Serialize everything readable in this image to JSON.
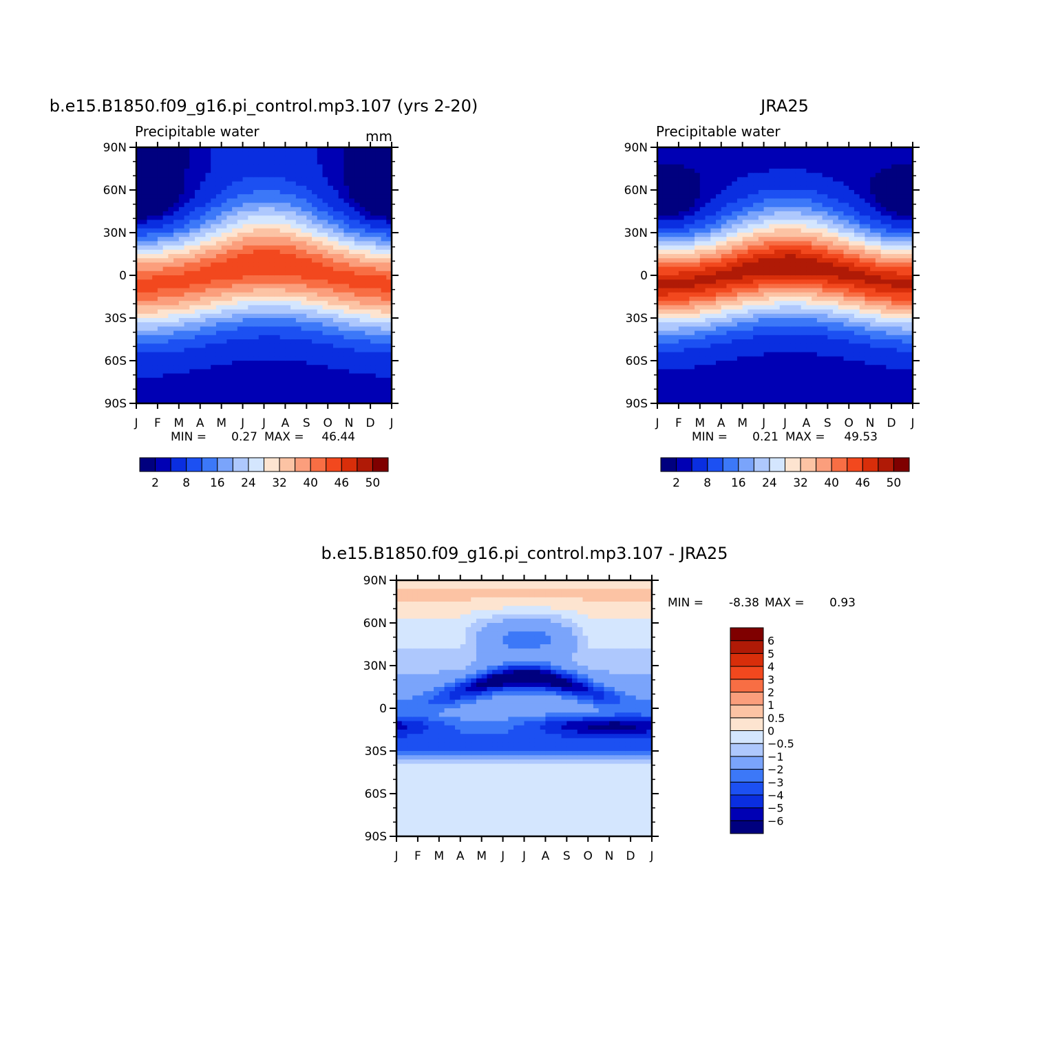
{
  "chart_data": [
    {
      "type": "heatmap",
      "title": "b.e15.B1850.f09_g16.pi_control.mp3.107 (yrs 2-20)",
      "left_subtitle": "Precipitable water",
      "units_label": "mm",
      "xlabel": "",
      "ylabel": "",
      "x_ticks": [
        "J",
        "F",
        "M",
        "A",
        "M",
        "J",
        "J",
        "A",
        "S",
        "O",
        "N",
        "D",
        "J"
      ],
      "y_ticks": [
        "90N",
        "60N",
        "30N",
        "0",
        "30S",
        "60S",
        "90S"
      ],
      "ylim": [
        -90,
        90
      ],
      "stats": {
        "min_label": "MIN =",
        "min": "0.27",
        "max_label": "MAX =",
        "max": "46.44"
      },
      "colorbar": {
        "orientation": "horizontal",
        "colors": [
          "#00007f",
          "#0000b4",
          "#0a2ee0",
          "#1c50f2",
          "#3c78f8",
          "#7aa4fb",
          "#aec8fd",
          "#d4e6fe",
          "#fde4d0",
          "#fcc3a4",
          "#fb9e7c",
          "#f86e44",
          "#f2481e",
          "#d82e0a",
          "#b01a06",
          "#7f0000"
        ],
        "tick_labels": [
          "2",
          "8",
          "16",
          "24",
          "32",
          "40",
          "46",
          "50"
        ]
      },
      "field": {
        "description": "zonal-mean precipitable water vs. month, peak ~44 mm near equator shifting north in JJA",
        "peak_max": 46.44
      }
    },
    {
      "type": "heatmap",
      "title": "JRA25",
      "left_subtitle": "Precipitable water",
      "units_label": "",
      "x_ticks": [
        "J",
        "F",
        "M",
        "A",
        "M",
        "J",
        "J",
        "A",
        "S",
        "O",
        "N",
        "D",
        "J"
      ],
      "y_ticks": [
        "90N",
        "60N",
        "30N",
        "0",
        "30S",
        "60S",
        "90S"
      ],
      "ylim": [
        -90,
        90
      ],
      "stats": {
        "min_label": "MIN =",
        "min": "0.21",
        "max_label": "MAX =",
        "max": "49.53"
      },
      "colorbar": {
        "orientation": "horizontal",
        "colors": [
          "#00007f",
          "#0000b4",
          "#0a2ee0",
          "#1c50f2",
          "#3c78f8",
          "#7aa4fb",
          "#aec8fd",
          "#d4e6fe",
          "#fde4d0",
          "#fcc3a4",
          "#fb9e7c",
          "#f86e44",
          "#f2481e",
          "#d82e0a",
          "#b01a06",
          "#7f0000"
        ],
        "tick_labels": [
          "2",
          "8",
          "16",
          "24",
          "32",
          "40",
          "46",
          "50"
        ]
      },
      "field": {
        "description": "zonal-mean precipitable water vs. month, peak ~49 mm near equator",
        "peak_max": 49.53
      }
    },
    {
      "type": "heatmap",
      "title": "b.e15.B1850.f09_g16.pi_control.mp3.107 - JRA25",
      "x_ticks": [
        "J",
        "F",
        "M",
        "A",
        "M",
        "J",
        "J",
        "A",
        "S",
        "O",
        "N",
        "D",
        "J"
      ],
      "y_ticks": [
        "90N",
        "60N",
        "30N",
        "0",
        "30S",
        "60S",
        "90S"
      ],
      "ylim": [
        -90,
        90
      ],
      "stats": {
        "min_label": "MIN =",
        "min": "-8.38",
        "max_label": "MAX =",
        "max": "0.93"
      },
      "colorbar": {
        "orientation": "vertical",
        "colors": [
          "#00007f",
          "#0000b4",
          "#0a2ee0",
          "#1c50f2",
          "#3c78f8",
          "#7aa4fb",
          "#aec8fd",
          "#d4e6fe",
          "#fde4d0",
          "#fcc3a4",
          "#fb9e7c",
          "#f86e44",
          "#f2481e",
          "#d82e0a",
          "#b01a06",
          "#7f0000"
        ],
        "tick_labels": [
          "-6",
          "-5",
          "-4",
          "-3",
          "-2",
          "-1",
          "-0.5",
          "0",
          "0.5",
          "1",
          "2",
          "3",
          "4",
          "5",
          "6"
        ]
      },
      "field": {
        "description": "difference field, mostly negative, strongest deficit (~-7) in northern tropics JJA and southern tropics OND",
        "min": -8.38,
        "max": 0.93
      }
    }
  ]
}
